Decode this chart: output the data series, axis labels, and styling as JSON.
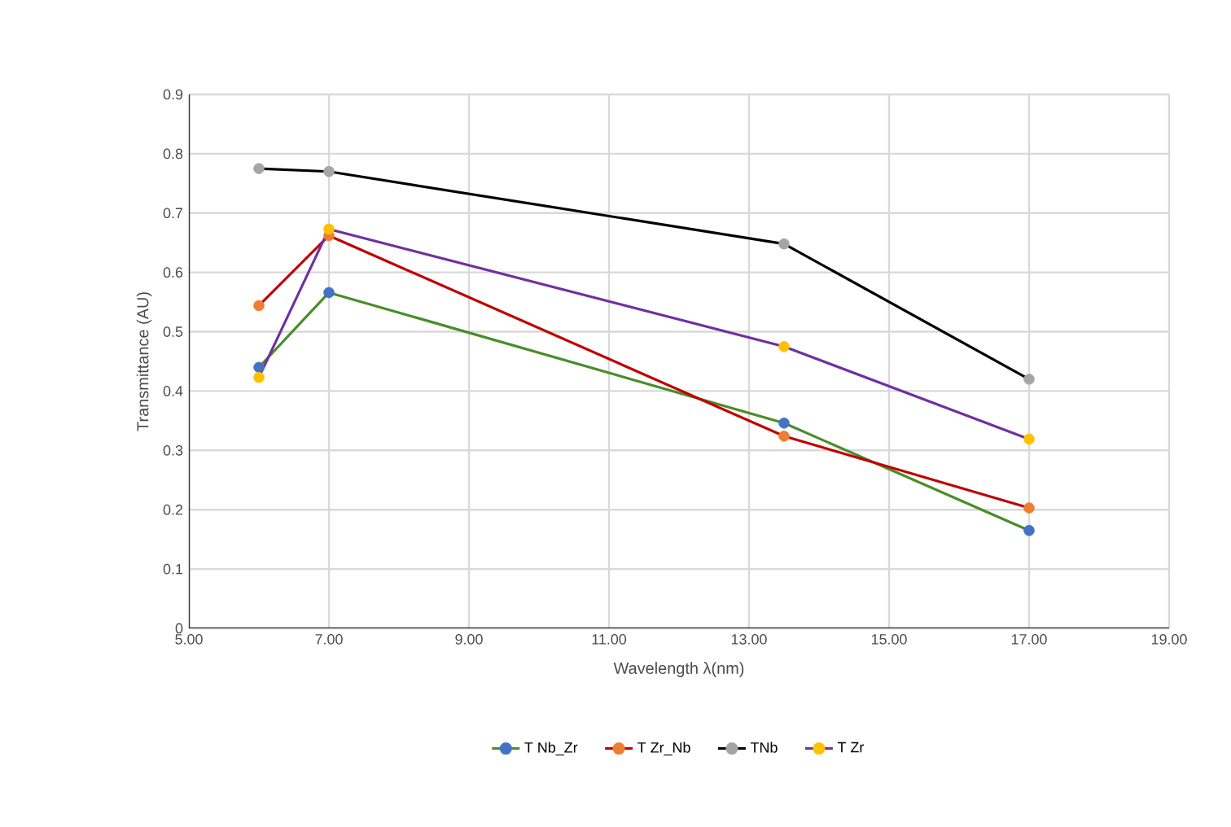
{
  "chart_data": {
    "type": "line",
    "xlabel": "Wavelength λ(nm)",
    "ylabel": "Transmittance (AU)",
    "x": [
      6,
      7,
      13.5,
      17
    ],
    "series": [
      {
        "name": "T Nb_Zr",
        "color": "#4a8c2a",
        "colors": [
          "#4472c4",
          "#4472c4",
          "#4472c4",
          "#4472c4"
        ],
        "values": [
          0.44,
          0.566,
          0.346,
          0.165
        ]
      },
      {
        "name": "T Zr_Nb",
        "color": "#c00000",
        "colors": [
          "#ed7d31",
          "#ed7d31",
          "#ed7d31",
          "#ed7d31"
        ],
        "values": [
          0.544,
          0.662,
          0.324,
          0.203
        ]
      },
      {
        "name": "TNb",
        "color": "#000000",
        "colors": [
          "#a5a5a5",
          "#a5a5a5",
          "#a5a5a5",
          "#a5a5a5"
        ],
        "values": [
          0.775,
          0.77,
          0.648,
          0.42
        ]
      },
      {
        "name": "T Zr",
        "color": "#7030a0",
        "colors": [
          "#ffc000",
          "#ffc000",
          "#ffc000",
          "#ffc000"
        ],
        "values": [
          0.423,
          0.673,
          0.475,
          0.319
        ]
      }
    ],
    "xlim": [
      5,
      19
    ],
    "xticks": [
      {
        "value": 5,
        "label": "5.00"
      },
      {
        "value": 7,
        "label": "7.00"
      },
      {
        "value": 9,
        "label": "9.00"
      },
      {
        "value": 11,
        "label": "11.00"
      },
      {
        "value": 13,
        "label": "13.00"
      },
      {
        "value": 15,
        "label": "15.00"
      },
      {
        "value": 17,
        "label": "17.00"
      },
      {
        "value": 19,
        "label": "19.00"
      }
    ],
    "ylim": [
      0,
      0.9
    ],
    "yticks": [
      0,
      0.1,
      0.2,
      0.3,
      0.4,
      0.5,
      0.6,
      0.7,
      0.8,
      0.9
    ],
    "grid": true,
    "legend": "bottom",
    "marker": "circle",
    "line_style": "solid"
  }
}
